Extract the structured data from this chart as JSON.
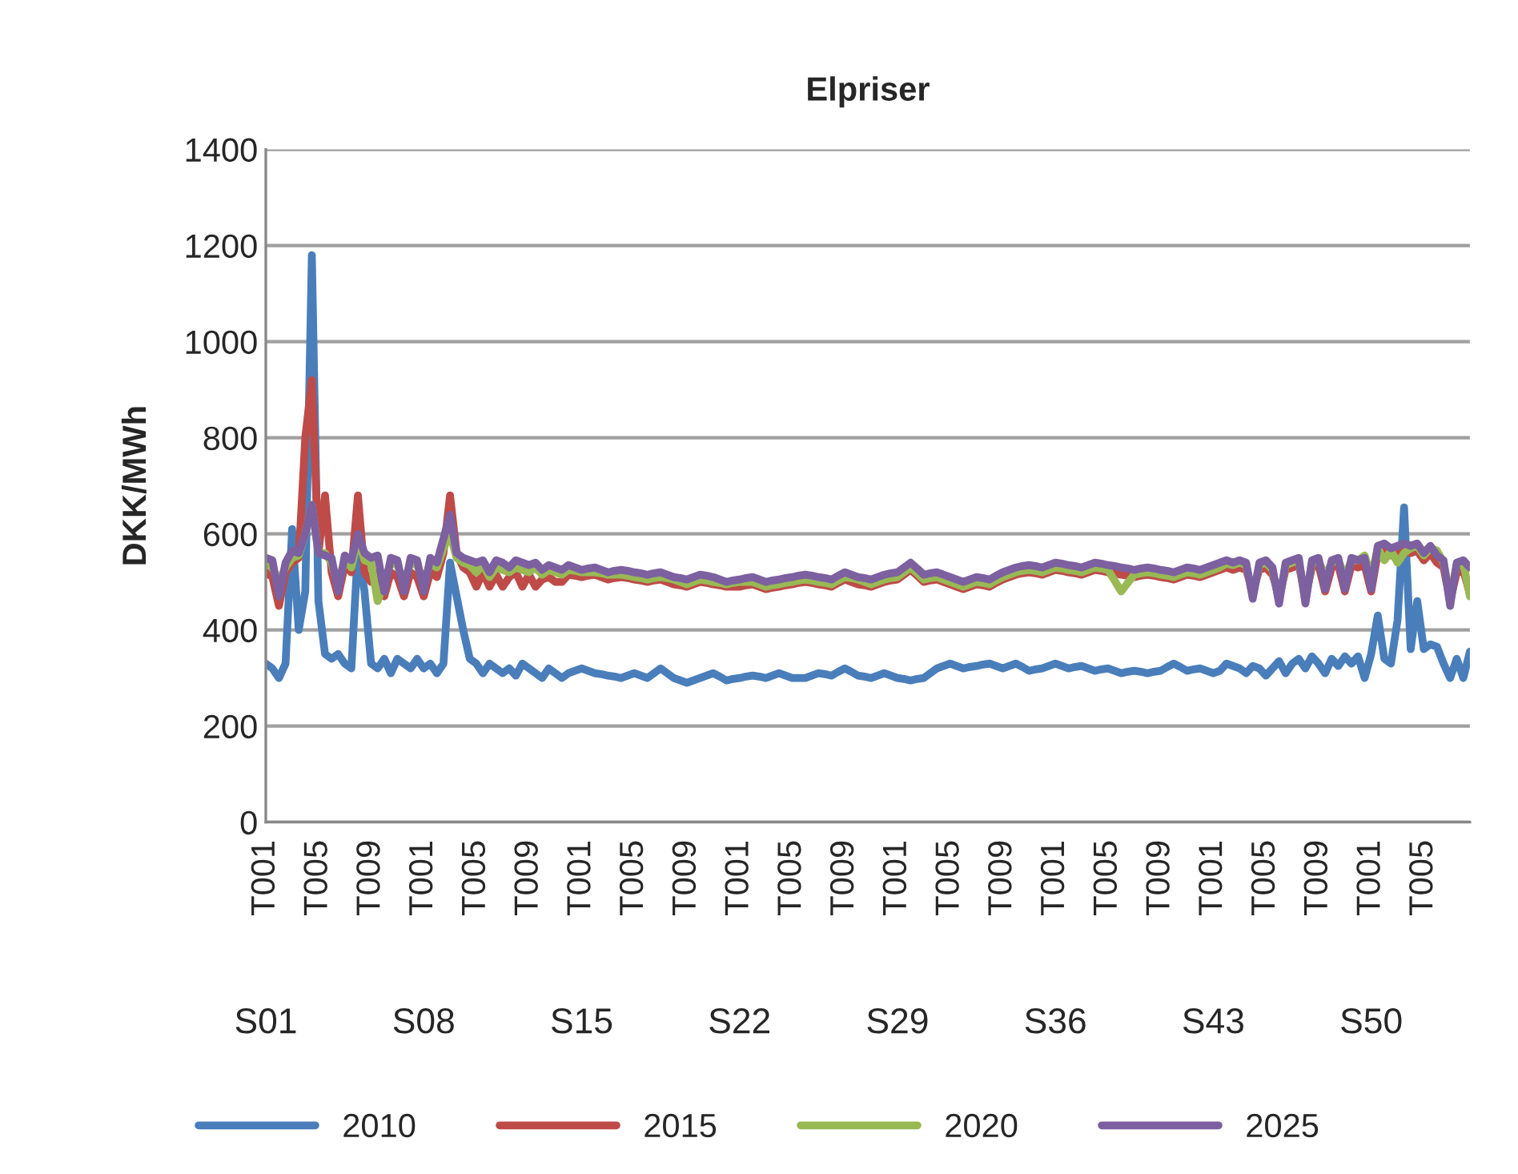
{
  "chart_data": {
    "type": "line",
    "title": "Elpriser",
    "ylabel": "DKK/MWh",
    "categories": [
      "T001",
      null,
      null,
      null,
      null,
      null,
      null,
      null,
      "T005",
      null,
      null,
      null,
      null,
      null,
      null,
      null,
      "T009",
      null,
      null,
      null,
      null,
      null,
      null,
      null,
      "T001",
      null,
      null,
      null,
      null,
      null,
      null,
      null,
      "T005",
      null,
      null,
      null,
      null,
      null,
      null,
      null,
      "T009",
      null,
      null,
      null,
      null,
      null,
      null,
      null,
      "T001",
      null,
      null,
      null,
      null,
      null,
      null,
      null,
      "T005",
      null,
      null,
      null,
      null,
      null,
      null,
      null,
      "T009",
      null,
      null,
      null,
      null,
      null,
      null,
      null,
      "T001",
      null,
      null,
      null,
      null,
      null,
      null,
      null,
      "T005",
      null,
      null,
      null,
      null,
      null,
      null,
      null,
      "T009",
      null,
      null,
      null,
      null,
      null,
      null,
      null,
      "T001",
      null,
      null,
      null,
      null,
      null,
      null,
      null,
      "T005",
      null,
      null,
      null,
      null,
      null,
      null,
      null,
      "T009",
      null,
      null,
      null,
      null,
      null,
      null,
      null,
      "T001",
      null,
      null,
      null,
      null,
      null,
      null,
      null,
      "T005",
      null,
      null,
      null,
      null,
      null,
      null,
      null,
      "T009",
      null,
      null,
      null,
      null,
      null,
      null,
      null,
      "T001",
      null,
      null,
      null,
      null,
      null,
      null,
      null,
      "T005",
      null,
      null,
      null,
      null,
      null,
      null,
      null,
      "T009",
      null,
      null,
      null,
      null,
      null,
      null,
      null,
      "T001",
      null,
      null,
      null,
      null,
      null,
      null,
      null,
      "T005",
      null,
      null,
      null,
      null,
      null,
      null,
      null
    ],
    "series": [
      {
        "name": "2010",
        "color": "#4a7ebb",
        "values": [
          330,
          320,
          300,
          330,
          610,
          400,
          480,
          1180,
          460,
          350,
          340,
          350,
          330,
          320,
          570,
          480,
          330,
          320,
          340,
          310,
          340,
          330,
          320,
          340,
          320,
          330,
          310,
          330,
          540,
          470,
          400,
          340,
          330,
          310,
          330,
          320,
          310,
          320,
          305,
          330,
          320,
          310,
          300,
          320,
          310,
          300,
          310,
          315,
          320,
          315,
          310,
          308,
          305,
          303,
          300,
          305,
          310,
          305,
          300,
          310,
          320,
          310,
          300,
          295,
          290,
          295,
          300,
          305,
          310,
          303,
          295,
          298,
          300,
          303,
          305,
          303,
          300,
          305,
          310,
          305,
          300,
          300,
          300,
          305,
          310,
          308,
          305,
          313,
          320,
          313,
          305,
          303,
          300,
          305,
          310,
          305,
          300,
          298,
          295,
          298,
          300,
          310,
          320,
          325,
          330,
          325,
          320,
          323,
          325,
          328,
          330,
          325,
          320,
          325,
          330,
          323,
          315,
          318,
          320,
          325,
          330,
          325,
          320,
          323,
          325,
          320,
          315,
          318,
          320,
          315,
          310,
          313,
          315,
          313,
          310,
          313,
          315,
          323,
          330,
          323,
          315,
          318,
          320,
          315,
          310,
          315,
          330,
          325,
          320,
          310,
          325,
          320,
          305,
          320,
          335,
          310,
          330,
          340,
          320,
          345,
          330,
          310,
          340,
          325,
          345,
          330,
          345,
          300,
          350,
          430,
          340,
          330,
          420,
          655,
          360,
          460,
          360,
          370,
          365,
          330,
          300,
          340,
          300,
          355
        ]
      },
      {
        "name": "2015",
        "color": "#be4b48",
        "values": [
          520,
          510,
          450,
          520,
          540,
          550,
          800,
          920,
          560,
          680,
          520,
          470,
          535,
          520,
          680,
          520,
          500,
          520,
          470,
          520,
          510,
          470,
          520,
          510,
          470,
          520,
          510,
          560,
          680,
          560,
          530,
          520,
          490,
          520,
          490,
          515,
          490,
          510,
          520,
          490,
          515,
          490,
          505,
          510,
          500,
          500,
          515,
          513,
          510,
          513,
          515,
          510,
          505,
          508,
          510,
          508,
          505,
          503,
          500,
          503,
          505,
          500,
          495,
          493,
          490,
          495,
          500,
          498,
          495,
          493,
          490,
          490,
          490,
          493,
          495,
          490,
          485,
          488,
          490,
          493,
          495,
          498,
          500,
          498,
          495,
          493,
          490,
          498,
          505,
          500,
          495,
          493,
          490,
          495,
          500,
          503,
          505,
          515,
          525,
          513,
          500,
          503,
          505,
          500,
          495,
          490,
          485,
          490,
          495,
          493,
          490,
          498,
          505,
          510,
          515,
          518,
          520,
          518,
          515,
          520,
          525,
          523,
          520,
          518,
          515,
          520,
          525,
          523,
          520,
          518,
          515,
          513,
          510,
          513,
          515,
          513,
          510,
          508,
          505,
          510,
          515,
          513,
          510,
          515,
          520,
          525,
          530,
          525,
          530,
          525,
          480,
          525,
          530,
          515,
          470,
          525,
          530,
          535,
          470,
          530,
          535,
          480,
          530,
          535,
          480,
          535,
          530,
          535,
          480,
          560,
          565,
          555,
          560,
          565,
          560,
          565,
          545,
          560,
          540,
          530,
          460,
          520,
          525,
          475
        ]
      },
      {
        "name": "2020",
        "color": "#98b954",
        "values": [
          540,
          530,
          500,
          530,
          550,
          555,
          600,
          660,
          560,
          560,
          540,
          490,
          550,
          530,
          590,
          545,
          540,
          460,
          500,
          540,
          535,
          500,
          540,
          535,
          500,
          540,
          530,
          570,
          600,
          550,
          540,
          535,
          520,
          535,
          510,
          530,
          525,
          520,
          530,
          525,
          520,
          530,
          515,
          525,
          520,
          515,
          525,
          523,
          520,
          520,
          520,
          518,
          515,
          515,
          515,
          513,
          510,
          508,
          505,
          508,
          510,
          508,
          505,
          500,
          495,
          500,
          505,
          503,
          500,
          498,
          495,
          498,
          500,
          500,
          500,
          495,
          490,
          493,
          495,
          498,
          500,
          503,
          505,
          503,
          500,
          498,
          495,
          503,
          510,
          508,
          505,
          500,
          495,
          500,
          505,
          508,
          510,
          520,
          530,
          518,
          505,
          508,
          510,
          505,
          500,
          495,
          490,
          495,
          500,
          498,
          495,
          503,
          510,
          515,
          520,
          523,
          525,
          523,
          520,
          525,
          530,
          528,
          525,
          523,
          520,
          525,
          530,
          528,
          525,
          503,
          480,
          498,
          515,
          518,
          520,
          518,
          515,
          513,
          510,
          515,
          520,
          518,
          515,
          520,
          525,
          530,
          538,
          535,
          540,
          535,
          470,
          535,
          540,
          525,
          460,
          535,
          540,
          545,
          460,
          540,
          545,
          510,
          540,
          545,
          510,
          545,
          545,
          555,
          510,
          570,
          545,
          565,
          540,
          560,
          570,
          575,
          555,
          570,
          565,
          540,
          470,
          535,
          540,
          470
        ]
      },
      {
        "name": "2025",
        "color": "#7d60a0",
        "values": [
          550,
          545,
          470,
          540,
          565,
          560,
          600,
          660,
          560,
          555,
          550,
          480,
          555,
          545,
          600,
          560,
          550,
          555,
          480,
          550,
          545,
          480,
          550,
          545,
          480,
          550,
          540,
          590,
          640,
          560,
          550,
          545,
          540,
          545,
          520,
          545,
          540,
          530,
          545,
          540,
          535,
          540,
          525,
          535,
          530,
          525,
          535,
          530,
          525,
          528,
          530,
          525,
          520,
          523,
          525,
          523,
          520,
          518,
          515,
          518,
          520,
          515,
          510,
          508,
          505,
          510,
          515,
          513,
          510,
          505,
          500,
          503,
          505,
          508,
          510,
          505,
          500,
          503,
          505,
          508,
          510,
          513,
          515,
          513,
          510,
          508,
          505,
          513,
          520,
          515,
          510,
          508,
          505,
          510,
          515,
          518,
          520,
          530,
          540,
          528,
          515,
          518,
          520,
          515,
          510,
          505,
          500,
          505,
          510,
          508,
          505,
          513,
          520,
          525,
          530,
          533,
          535,
          533,
          530,
          535,
          540,
          538,
          535,
          533,
          530,
          535,
          540,
          538,
          535,
          533,
          530,
          528,
          525,
          528,
          530,
          528,
          525,
          523,
          520,
          525,
          530,
          528,
          525,
          530,
          535,
          540,
          545,
          540,
          545,
          540,
          465,
          540,
          545,
          530,
          455,
          540,
          545,
          550,
          455,
          545,
          550,
          485,
          545,
          550,
          485,
          550,
          545,
          550,
          485,
          575,
          580,
          570,
          575,
          580,
          575,
          580,
          560,
          575,
          555,
          545,
          450,
          540,
          545,
          530
        ]
      }
    ],
    "ylim": [
      0,
      1400
    ],
    "yticks": [
      0,
      200,
      400,
      600,
      800,
      1000,
      1200,
      1400
    ],
    "grid": "y",
    "legend": "bottom",
    "marker": "none",
    "line_style": "solid",
    "annotations": [
      "S01",
      "S08",
      "S15",
      "S22",
      "S29",
      "S36",
      "S43",
      "S50"
    ]
  }
}
